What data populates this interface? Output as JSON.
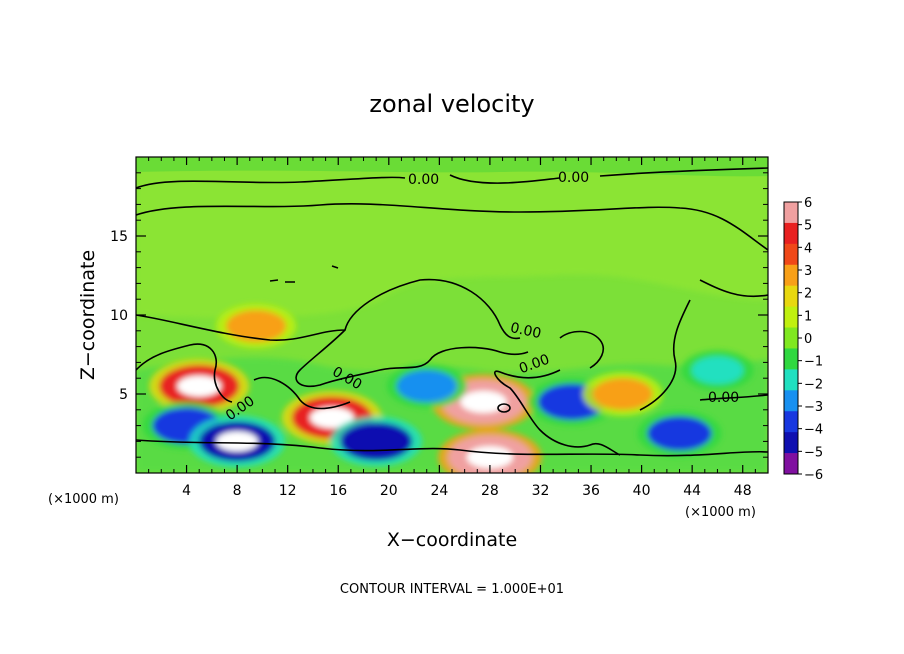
{
  "chart_data": {
    "type": "heatmap",
    "title": "zonal velocity",
    "xlabel": "X−coordinate",
    "ylabel": "Z−coordinate",
    "x_unit_note_left": "(×1000 m)",
    "x_unit_note_right": "(×1000 m)",
    "footer": "CONTOUR INTERVAL = 1.000E+01",
    "xlim": [
      0,
      50
    ],
    "ylim": [
      0,
      20
    ],
    "x_ticks": [
      4,
      8,
      12,
      16,
      20,
      24,
      28,
      32,
      36,
      40,
      44,
      48
    ],
    "y_ticks": [
      5,
      10,
      15
    ],
    "colorbar": {
      "ticks": [
        "6",
        "5",
        "4",
        "3",
        "2",
        "1",
        "0",
        "−1",
        "−2",
        "−3",
        "−4",
        "−5",
        "−6"
      ],
      "colors": [
        "#f0a0a0",
        "#e82020",
        "#f04818",
        "#f8a018",
        "#e8d810",
        "#c0f010",
        "#80e820",
        "#30d840",
        "#20e0c0",
        "#1890f0",
        "#1838e0",
        "#1010b0",
        "#8010a0"
      ]
    },
    "contour_labels": [
      "0.00",
      "0.00",
      "0.00",
      "0.00",
      "0.00",
      "0.00",
      "0.00"
    ],
    "features": [
      {
        "x": 5,
        "z": 5.5,
        "u": 5.5
      },
      {
        "x": 9.5,
        "z": 9.3,
        "u": 3
      },
      {
        "x": 4,
        "z": 3,
        "u": -4
      },
      {
        "x": 8,
        "z": 2,
        "u": -5
      },
      {
        "x": 15.5,
        "z": 3.5,
        "u": 5.5
      },
      {
        "x": 19,
        "z": 2,
        "u": -4.5
      },
      {
        "x": 27.5,
        "z": 4.5,
        "u": 6
      },
      {
        "x": 28,
        "z": 1,
        "u": 6
      },
      {
        "x": 34.5,
        "z": 4.5,
        "u": -4
      },
      {
        "x": 38.5,
        "z": 5,
        "u": 3
      },
      {
        "x": 43,
        "z": 2.5,
        "u": -3.5
      },
      {
        "x": 46,
        "z": 6.5,
        "u": -2
      },
      {
        "x": 23,
        "z": 5.5,
        "u": -3
      }
    ]
  }
}
